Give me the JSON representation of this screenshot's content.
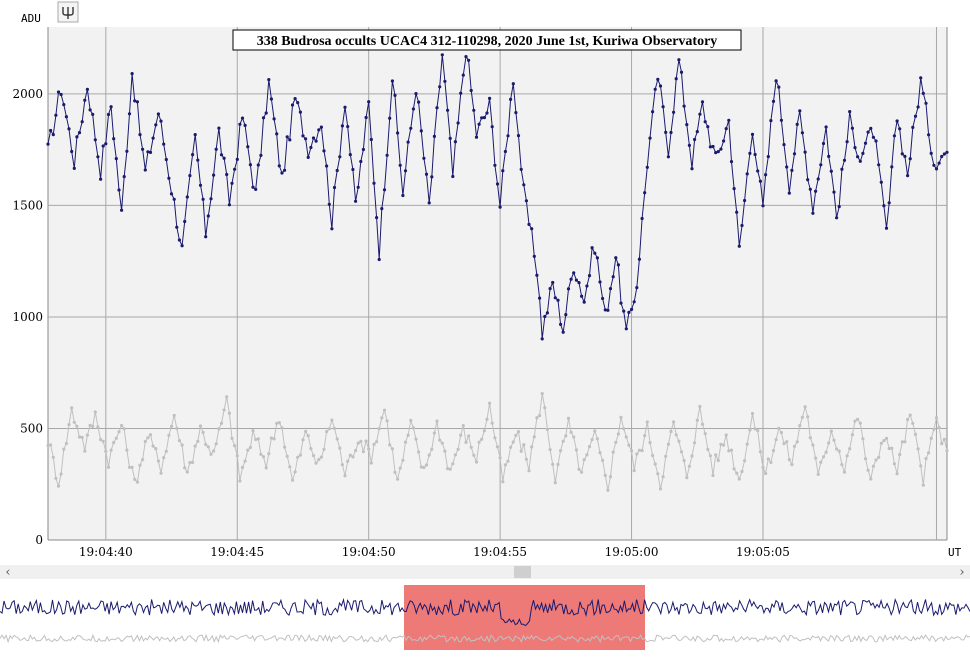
{
  "chart_data": {
    "type": "line",
    "title": "338 Budrosa occults UCAC4 312-110298, 2020 June 1st, Kuriwa Observatory",
    "ylabel": "ADU",
    "xlabel": "UT",
    "ylim": [
      0,
      2300
    ],
    "yticks": [
      0,
      500,
      1000,
      1500,
      2000
    ],
    "xlim_seconds": [
      37.8,
      72.0
    ],
    "xticks": [
      {
        "t": 40,
        "label": "19:04:40"
      },
      {
        "t": 45,
        "label": "19:04:45"
      },
      {
        "t": 50,
        "label": "19:04:50"
      },
      {
        "t": 55,
        "label": "19:04:55"
      },
      {
        "t": 60,
        "label": "19:05:00"
      },
      {
        "t": 65,
        "label": "19:05:05"
      }
    ],
    "x_seconds_note": "19:04:",
    "grid": true,
    "series": [
      {
        "color": "#1a1a6e",
        "anchors": [
          [
            37.8,
            1740
          ],
          [
            38.3,
            2030
          ],
          [
            38.8,
            1700
          ],
          [
            39.3,
            2040
          ],
          [
            39.8,
            1660
          ],
          [
            40.2,
            1950
          ],
          [
            40.6,
            1460
          ],
          [
            41.0,
            2100
          ],
          [
            41.5,
            1650
          ],
          [
            42.0,
            1920
          ],
          [
            42.5,
            1580
          ],
          [
            42.9,
            1300
          ],
          [
            43.4,
            1800
          ],
          [
            43.8,
            1380
          ],
          [
            44.3,
            1830
          ],
          [
            44.7,
            1520
          ],
          [
            45.2,
            1900
          ],
          [
            45.7,
            1550
          ],
          [
            46.2,
            2050
          ],
          [
            46.7,
            1620
          ],
          [
            47.2,
            1980
          ],
          [
            47.7,
            1760
          ],
          [
            48.2,
            1880
          ],
          [
            48.6,
            1430
          ],
          [
            49.1,
            1980
          ],
          [
            49.5,
            1500
          ],
          [
            50.0,
            1950
          ],
          [
            50.4,
            1300
          ],
          [
            50.9,
            2080
          ],
          [
            51.3,
            1560
          ],
          [
            51.8,
            2040
          ],
          [
            52.3,
            1500
          ],
          [
            52.8,
            2180
          ],
          [
            53.2,
            1630
          ],
          [
            53.7,
            2210
          ],
          [
            54.1,
            1820
          ],
          [
            54.6,
            1950
          ],
          [
            55.0,
            1500
          ],
          [
            55.5,
            2080
          ],
          [
            55.9,
            1550
          ],
          [
            56.4,
            1220
          ],
          [
            56.6,
            930
          ],
          [
            57.0,
            1150
          ],
          [
            57.4,
            950
          ],
          [
            57.8,
            1240
          ],
          [
            58.2,
            1080
          ],
          [
            58.6,
            1330
          ],
          [
            59.0,
            1000
          ],
          [
            59.4,
            1280
          ],
          [
            59.8,
            920
          ],
          [
            60.2,
            1150
          ],
          [
            60.6,
            1700
          ],
          [
            61.0,
            2080
          ],
          [
            61.4,
            1760
          ],
          [
            61.8,
            2150
          ],
          [
            62.3,
            1700
          ],
          [
            62.7,
            1950
          ],
          [
            63.2,
            1700
          ],
          [
            63.7,
            1880
          ],
          [
            64.1,
            1300
          ],
          [
            64.6,
            1860
          ],
          [
            65.0,
            1480
          ],
          [
            65.5,
            2100
          ],
          [
            66.0,
            1600
          ],
          [
            66.4,
            1900
          ],
          [
            66.9,
            1500
          ],
          [
            67.4,
            1850
          ],
          [
            67.8,
            1450
          ],
          [
            68.3,
            1880
          ],
          [
            68.7,
            1720
          ],
          [
            69.2,
            1840
          ],
          [
            69.7,
            1380
          ],
          [
            70.1,
            1900
          ],
          [
            70.5,
            1650
          ],
          [
            71.0,
            2060
          ],
          [
            71.5,
            1700
          ],
          [
            72.0,
            1740
          ]
        ]
      },
      {
        "color": "#c0c0c0",
        "anchors": [
          [
            37.8,
            450
          ],
          [
            38.2,
            260
          ],
          [
            38.7,
            580
          ],
          [
            39.2,
            420
          ],
          [
            39.6,
            560
          ],
          [
            40.1,
            360
          ],
          [
            40.6,
            520
          ],
          [
            41.1,
            250
          ],
          [
            41.6,
            470
          ],
          [
            42.1,
            330
          ],
          [
            42.6,
            560
          ],
          [
            43.1,
            300
          ],
          [
            43.6,
            500
          ],
          [
            44.1,
            380
          ],
          [
            44.6,
            620
          ],
          [
            45.1,
            280
          ],
          [
            45.6,
            470
          ],
          [
            46.1,
            350
          ],
          [
            46.6,
            560
          ],
          [
            47.1,
            260
          ],
          [
            47.6,
            480
          ],
          [
            48.1,
            330
          ],
          [
            48.6,
            550
          ],
          [
            49.1,
            300
          ],
          [
            49.6,
            460
          ],
          [
            50.1,
            380
          ],
          [
            50.6,
            590
          ],
          [
            51.1,
            260
          ],
          [
            51.6,
            520
          ],
          [
            52.1,
            300
          ],
          [
            52.6,
            520
          ],
          [
            53.1,
            310
          ],
          [
            53.6,
            490
          ],
          [
            54.1,
            370
          ],
          [
            54.6,
            600
          ],
          [
            55.1,
            270
          ],
          [
            55.6,
            480
          ],
          [
            56.1,
            340
          ],
          [
            56.6,
            650
          ],
          [
            57.1,
            280
          ],
          [
            57.6,
            520
          ],
          [
            58.1,
            300
          ],
          [
            58.6,
            470
          ],
          [
            59.1,
            250
          ],
          [
            59.6,
            560
          ],
          [
            60.1,
            330
          ],
          [
            60.6,
            500
          ],
          [
            61.1,
            260
          ],
          [
            61.6,
            520
          ],
          [
            62.1,
            290
          ],
          [
            62.6,
            580
          ],
          [
            63.1,
            320
          ],
          [
            63.6,
            470
          ],
          [
            64.1,
            270
          ],
          [
            64.6,
            560
          ],
          [
            65.1,
            300
          ],
          [
            65.6,
            500
          ],
          [
            66.1,
            350
          ],
          [
            66.6,
            610
          ],
          [
            67.1,
            280
          ],
          [
            67.6,
            500
          ],
          [
            68.1,
            330
          ],
          [
            68.6,
            560
          ],
          [
            69.1,
            260
          ],
          [
            69.6,
            480
          ],
          [
            70.1,
            320
          ],
          [
            70.6,
            560
          ],
          [
            71.1,
            280
          ],
          [
            71.6,
            540
          ],
          [
            72.0,
            380
          ]
        ]
      }
    ]
  },
  "toolbar": {
    "tool_icon": "tuning-fork-icon"
  },
  "scrollbar": {
    "left_arrow": "‹",
    "right_arrow": "›"
  },
  "overview": {
    "selection_color": "#ee7a78",
    "selection_range_fraction": [
      0.417,
      0.665
    ]
  },
  "colors": {
    "background": "#f2f2f2",
    "grid": "#a0a0a0",
    "primary": "#1a1a6e",
    "secondary": "#c0c0c0"
  }
}
